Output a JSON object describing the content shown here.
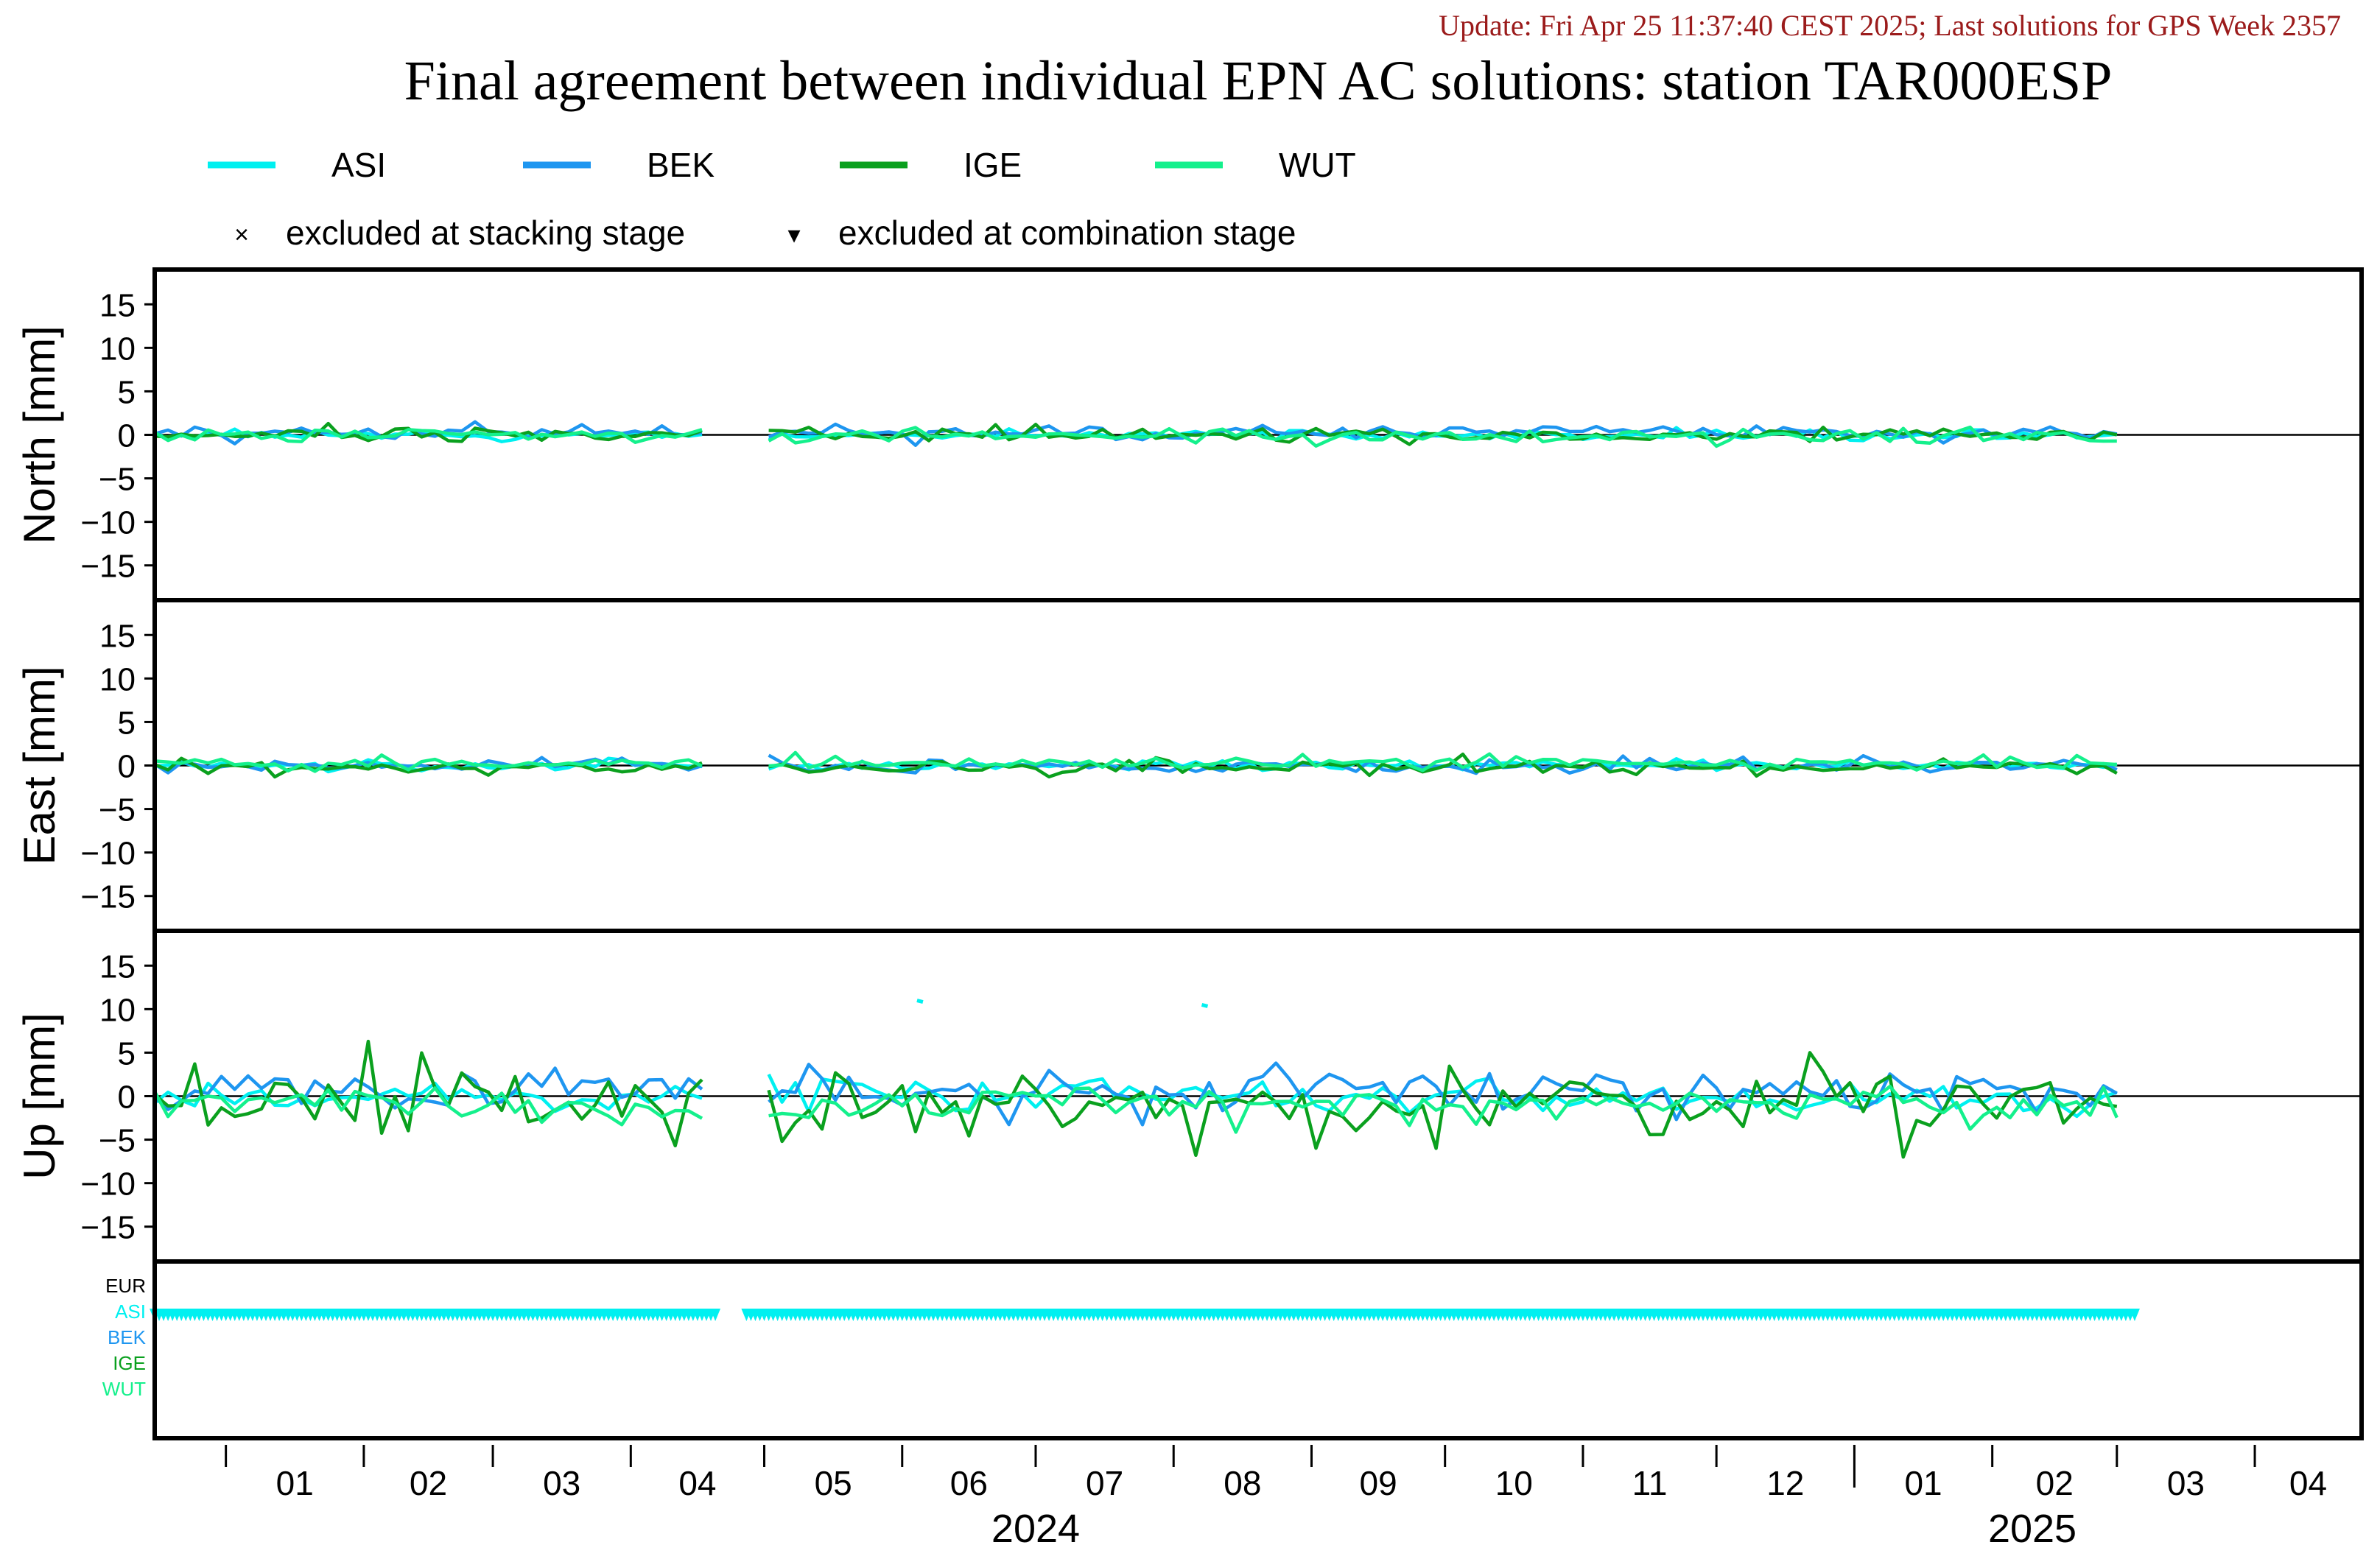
{
  "header": {
    "update_text": "Update: Fri Apr 25 11:37:40 CEST 2025; Last solutions for GPS Week 2357",
    "title": "Final agreement between individual EPN AC solutions: station TAR000ESP"
  },
  "legend": {
    "series": [
      {
        "name": "ASI",
        "color": "#00f0f0"
      },
      {
        "name": "BEK",
        "color": "#1e96f0"
      },
      {
        "name": "IGE",
        "color": "#0aa01e"
      },
      {
        "name": "WUT",
        "color": "#14f08c"
      }
    ],
    "markers": [
      {
        "symbol": "×",
        "label": "excluded at stacking stage"
      },
      {
        "symbol": "▾",
        "label": "excluded at combination stage"
      }
    ]
  },
  "chart_data": {
    "type": "line",
    "x_axis": {
      "range": [
        "2023-12-16",
        "2025-04-25"
      ],
      "month_ticks": [
        "2024-01-01",
        "2024-02-01",
        "2024-03-01",
        "2024-04-01",
        "2024-05-01",
        "2024-06-01",
        "2024-07-01",
        "2024-08-01",
        "2024-09-01",
        "2024-10-01",
        "2024-11-01",
        "2024-12-01",
        "2025-01-01",
        "2025-02-01",
        "2025-03-01",
        "2025-04-01"
      ],
      "month_labels": [
        "01",
        "02",
        "03",
        "04",
        "05",
        "06",
        "07",
        "08",
        "09",
        "10",
        "11",
        "12",
        "01",
        "02",
        "03",
        "04"
      ],
      "year_labels": [
        {
          "label": "2024",
          "center": "2024-07-01"
        },
        {
          "label": "2025",
          "center": "2025-02-10"
        }
      ],
      "data_gaps": [
        [
          "2024-04-20",
          "2024-04-29"
        ]
      ],
      "data_end": "2025-03-03"
    },
    "panels": [
      {
        "ylabel": "North [mm]",
        "ylim": [
          -19,
          19
        ],
        "yticks": [
          15,
          10,
          5,
          0,
          -5,
          -10,
          -15
        ],
        "zero_line": true,
        "series_stats": [
          {
            "name": "ASI",
            "mean": 0.0,
            "std": 0.3
          },
          {
            "name": "BEK",
            "mean": 0.2,
            "std": 0.4
          },
          {
            "name": "IGE",
            "mean": 0.0,
            "std": 0.4
          },
          {
            "name": "WUT",
            "mean": -0.1,
            "std": 0.4
          }
        ],
        "highlights": [
          {
            "series": "BEK",
            "date": "2024-02-25",
            "value": 1.5
          },
          {
            "series": "IGE",
            "date": "2024-01-25",
            "value": 1.3
          },
          {
            "series": "IGE",
            "date": "2024-07-01",
            "value": 1.2
          },
          {
            "series": "BEK",
            "date": "2024-06-05",
            "value": -1.2
          },
          {
            "series": "WUT",
            "date": "2024-12-01",
            "value": -1.3
          },
          {
            "series": "IGE",
            "date": "2024-09-22",
            "value": -1.1
          }
        ]
      },
      {
        "ylabel": "East [mm]",
        "ylim": [
          -19,
          19
        ],
        "yticks": [
          15,
          10,
          5,
          0,
          -5,
          -10,
          -15
        ],
        "zero_line": true,
        "series_stats": [
          {
            "name": "ASI",
            "mean": 0.0,
            "std": 0.3
          },
          {
            "name": "BEK",
            "mean": 0.0,
            "std": 0.4
          },
          {
            "name": "IGE",
            "mean": -0.2,
            "std": 0.4
          },
          {
            "name": "WUT",
            "mean": 0.3,
            "std": 0.4
          }
        ],
        "highlights": [
          {
            "series": "IGE",
            "date": "2024-10-05",
            "value": 1.3
          },
          {
            "series": "WUT",
            "date": "2024-02-05",
            "value": 1.2
          },
          {
            "series": "IGE",
            "date": "2024-07-05",
            "value": -1.3
          },
          {
            "series": "BEK",
            "date": "2024-10-08",
            "value": -0.9
          },
          {
            "series": "IGE",
            "date": "2025-03-01",
            "value": -0.9
          }
        ]
      },
      {
        "ylabel": "Up [mm]",
        "ylim": [
          -19,
          19
        ],
        "yticks": [
          15,
          10,
          5,
          0,
          -5,
          -10,
          -15
        ],
        "zero_line": true,
        "series_stats": [
          {
            "name": "ASI",
            "mean": 0.0,
            "std": 1.0
          },
          {
            "name": "BEK",
            "mean": 0.7,
            "std": 1.3
          },
          {
            "name": "IGE",
            "mean": -0.8,
            "std": 1.8
          },
          {
            "name": "WUT",
            "mean": -1.0,
            "std": 1.1
          }
        ],
        "highlights": [
          {
            "series": "IGE",
            "date": "2024-02-01",
            "value": 6.3
          },
          {
            "series": "IGE",
            "date": "2024-12-23",
            "value": 5.0
          },
          {
            "series": "IGE",
            "date": "2024-08-05",
            "value": -6.8
          },
          {
            "series": "IGE",
            "date": "2025-01-12",
            "value": -7.0
          },
          {
            "series": "IGE",
            "date": "2024-09-28",
            "value": -6.0
          },
          {
            "series": "IGE",
            "date": "2024-04-10",
            "value": -5.7
          },
          {
            "series": "IGE",
            "date": "2024-05-05",
            "value": -5.2
          },
          {
            "series": "BEK",
            "date": "2024-08-25",
            "value": 3.8
          }
        ],
        "isolated_points": [
          {
            "series": "ASI",
            "date": "2024-06-05",
            "value": 11.0
          },
          {
            "series": "ASI",
            "date": "2024-08-08",
            "value": 10.5
          }
        ]
      }
    ],
    "status_panel": {
      "labels": [
        {
          "name": "EUR",
          "color": "#000000"
        },
        {
          "name": "ASI",
          "color": "#00f0f0"
        },
        {
          "name": "BEK",
          "color": "#1e96f0"
        },
        {
          "name": "IGE",
          "color": "#0aa01e"
        },
        {
          "name": "WUT",
          "color": "#14f08c"
        }
      ],
      "marker_series": "ASI",
      "marker_symbol": "▾",
      "segments": [
        [
          "2023-12-16",
          "2024-04-20"
        ],
        [
          "2024-04-27",
          "2025-03-05"
        ]
      ]
    }
  }
}
